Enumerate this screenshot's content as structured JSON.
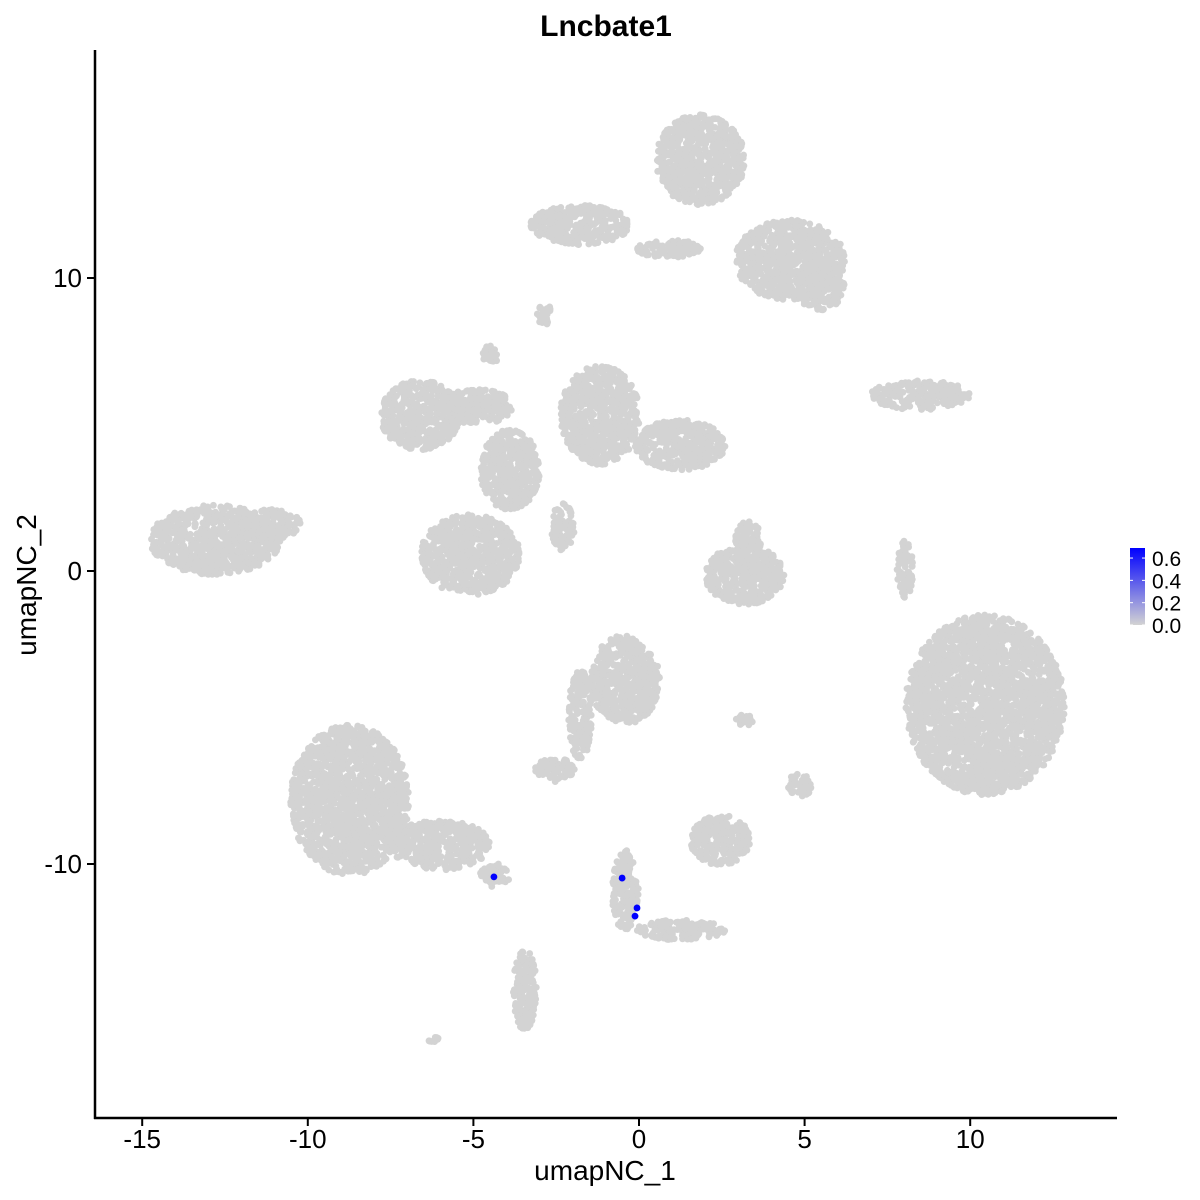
{
  "chart_data": {
    "type": "scatter",
    "title": "Lncbate1",
    "xlabel": "umapNC_1",
    "ylabel": "umapNC_2",
    "xlim": [
      -16.4,
      14.4
    ],
    "ylim": [
      -18.6,
      17.8
    ],
    "x_ticks": [
      -15,
      -10,
      -5,
      0,
      5,
      10
    ],
    "x_tick_labels": [
      "-15",
      "-10",
      "-5",
      "0",
      "5",
      "10"
    ],
    "y_ticks": [
      -10,
      0,
      10
    ],
    "y_tick_labels": [
      "-10",
      "0",
      "10"
    ],
    "grid": false,
    "colors": {
      "low": "#d3d3d3",
      "high": "#0000ff"
    },
    "legend": {
      "placement": "right",
      "range": [
        0,
        0.69
      ],
      "ticks": [
        0.0,
        0.2,
        0.4,
        0.6
      ],
      "tick_labels": [
        "0.0",
        "0.2",
        "0.4",
        "0.6"
      ]
    },
    "background_clusters_expression": 0,
    "background_clusters": [
      {
        "cx": 1.84,
        "cy": 14.03,
        "rx": 1.36,
        "ry": 1.54
      },
      {
        "cx": 4.56,
        "cy": 10.61,
        "rx": 1.66,
        "ry": 1.37
      },
      {
        "cx": -1.78,
        "cy": 11.81,
        "rx": 1.5,
        "ry": 0.68
      },
      {
        "cx": 5.47,
        "cy": 9.76,
        "rx": 0.75,
        "ry": 0.85
      },
      {
        "cx": 0.9,
        "cy": 11.0,
        "rx": 1.0,
        "ry": 0.3
      },
      {
        "cx": 10.45,
        "cy": -4.57,
        "rx": 2.4,
        "ry": 3.07
      },
      {
        "cx": -12.8,
        "cy": 1.06,
        "rx": 1.96,
        "ry": 1.19
      },
      {
        "cx": -11.1,
        "cy": 1.6,
        "rx": 0.9,
        "ry": 0.5
      },
      {
        "cx": -6.61,
        "cy": 5.32,
        "rx": 1.2,
        "ry": 1.19
      },
      {
        "cx": -1.18,
        "cy": 5.32,
        "rx": 1.2,
        "ry": 1.7
      },
      {
        "cx": 1.24,
        "cy": 4.3,
        "rx": 1.36,
        "ry": 0.85
      },
      {
        "cx": -5.1,
        "cy": 0.55,
        "rx": 1.5,
        "ry": 1.37
      },
      {
        "cx": -3.9,
        "cy": 3.45,
        "rx": 0.9,
        "ry": 1.37
      },
      {
        "cx": -4.9,
        "cy": 5.6,
        "rx": 1.1,
        "ry": 0.6
      },
      {
        "cx": -2.3,
        "cy": 1.5,
        "rx": 0.35,
        "ry": 0.8
      },
      {
        "cx": 3.2,
        "cy": -0.14,
        "rx": 1.2,
        "ry": 1.0
      },
      {
        "cx": 3.3,
        "cy": 1.0,
        "rx": 0.4,
        "ry": 0.7
      },
      {
        "cx": 8.48,
        "cy": 6.0,
        "rx": 1.5,
        "ry": 0.5
      },
      {
        "cx": 8.03,
        "cy": 0.03,
        "rx": 0.24,
        "ry": 1.0
      },
      {
        "cx": -8.73,
        "cy": -7.82,
        "rx": 1.8,
        "ry": 2.56
      },
      {
        "cx": -6.0,
        "cy": -9.35,
        "rx": 1.5,
        "ry": 0.85
      },
      {
        "cx": -4.35,
        "cy": -10.38,
        "rx": 0.45,
        "ry": 0.4
      },
      {
        "cx": -3.44,
        "cy": -14.3,
        "rx": 0.36,
        "ry": 1.37
      },
      {
        "cx": -0.42,
        "cy": -3.72,
        "rx": 1.05,
        "ry": 1.54
      },
      {
        "cx": -2.54,
        "cy": -6.79,
        "rx": 0.6,
        "ry": 0.4
      },
      {
        "cx": -1.78,
        "cy": -4.91,
        "rx": 0.35,
        "ry": 1.54
      },
      {
        "cx": 2.45,
        "cy": -9.18,
        "rx": 0.9,
        "ry": 0.85
      },
      {
        "cx": -0.42,
        "cy": -10.89,
        "rx": 0.4,
        "ry": 1.37
      },
      {
        "cx": 1.24,
        "cy": -12.25,
        "rx": 1.36,
        "ry": 0.34
      },
      {
        "cx": 4.86,
        "cy": -7.3,
        "rx": 0.36,
        "ry": 0.4
      },
      {
        "cx": 3.2,
        "cy": -5.08,
        "rx": 0.3,
        "ry": 0.2
      },
      {
        "cx": -4.5,
        "cy": 7.37,
        "rx": 0.24,
        "ry": 0.35
      },
      {
        "cx": -2.84,
        "cy": 8.74,
        "rx": 0.24,
        "ry": 0.35
      },
      {
        "cx": -6.16,
        "cy": -16.0,
        "rx": 0.2,
        "ry": 0.15
      }
    ],
    "expressing_cells": [
      {
        "x": -4.38,
        "y": -10.44,
        "value": 0.69
      },
      {
        "x": -0.51,
        "y": -10.48,
        "value": 0.69
      },
      {
        "x": -0.06,
        "y": -11.5,
        "value": 0.69
      },
      {
        "x": -0.12,
        "y": -11.78,
        "value": 0.69
      }
    ]
  }
}
